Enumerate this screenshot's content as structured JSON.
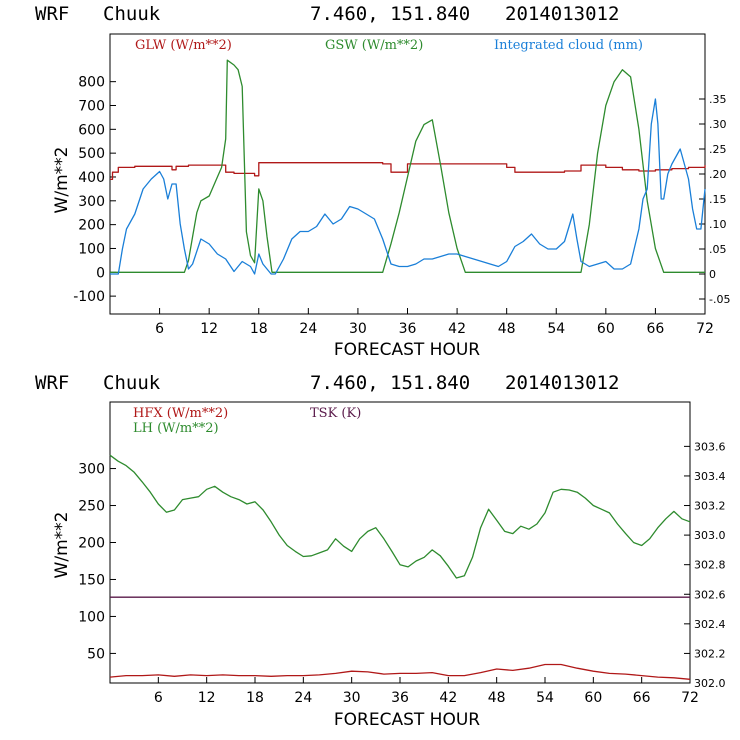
{
  "colors": {
    "red": "#b01818",
    "green": "#2e8b2e",
    "blue": "#1a7fd8",
    "purple": "#5a1a4a",
    "axis": "#000000"
  },
  "chart_data": [
    {
      "type": "line",
      "header": {
        "model": "WRF",
        "station": "Chuuk",
        "coords": "7.460, 151.840",
        "date": "2014013012"
      },
      "xlabel": "FORECAST HOUR",
      "ylabel": "W/m**2",
      "xlim": [
        0,
        72
      ],
      "xticks": [
        6,
        12,
        18,
        24,
        30,
        36,
        42,
        48,
        54,
        60,
        66,
        72
      ],
      "ylim": [
        -175,
        1000
      ],
      "yticks": [
        -100,
        0,
        100,
        200,
        300,
        400,
        500,
        600,
        700,
        800
      ],
      "y2lim": [
        -0.08,
        0.48
      ],
      "y2ticks": [
        -0.05,
        0,
        0.05,
        0.1,
        0.15,
        0.2,
        0.25,
        0.3,
        0.35
      ],
      "y2ticklabels": [
        "-.05",
        "0",
        ".05",
        ".10",
        ".15",
        ".20",
        ".25",
        ".30",
        ".35"
      ],
      "legend": [
        "GLW (W/m**2)",
        "GSW (W/m**2)",
        "Integrated cloud (mm)"
      ],
      "series": [
        {
          "name": "GLW (W/m**2)",
          "color": "red",
          "axis": "left",
          "step": true,
          "x": [
            0,
            0.3,
            1,
            3,
            7,
            7.5,
            8,
            9.5,
            14,
            15,
            17.5,
            18,
            20,
            33,
            34,
            36,
            44,
            48,
            49,
            55,
            57,
            60,
            62,
            64,
            66,
            68,
            70,
            72
          ],
          "y": [
            390,
            420,
            440,
            445,
            445,
            430,
            445,
            450,
            420,
            415,
            405,
            460,
            460,
            455,
            420,
            455,
            455,
            440,
            420,
            425,
            450,
            440,
            430,
            425,
            430,
            435,
            440,
            450
          ]
        },
        {
          "name": "GSW (W/m**2)",
          "color": "green",
          "axis": "left",
          "step": false,
          "x": [
            0,
            9,
            9.5,
            10,
            10.5,
            11,
            12,
            13,
            13.5,
            14,
            14.2,
            15,
            15.5,
            16,
            16.5,
            17,
            17.5,
            18,
            18.5,
            19,
            19.6,
            20,
            33,
            34,
            35,
            36,
            37,
            38,
            39,
            40,
            41,
            42,
            43,
            57,
            58,
            59,
            60,
            61,
            62,
            63,
            64,
            65,
            66,
            67,
            72
          ],
          "y": [
            0,
            0,
            50,
            150,
            250,
            300,
            320,
            400,
            440,
            560,
            890,
            870,
            850,
            780,
            170,
            70,
            40,
            350,
            300,
            150,
            0,
            0,
            0,
            120,
            250,
            400,
            550,
            620,
            640,
            450,
            250,
            100,
            0,
            0,
            200,
            500,
            700,
            800,
            850,
            820,
            600,
            300,
            100,
            0,
            0
          ]
        },
        {
          "name": "Integrated cloud (mm)",
          "color": "blue",
          "axis": "right",
          "step": false,
          "x": [
            0,
            1,
            1.5,
            2,
            3,
            4,
            5,
            6,
            6.5,
            7,
            7.5,
            8,
            8.5,
            9,
            9.5,
            10,
            11,
            12,
            13,
            14,
            15,
            16,
            17,
            17.5,
            18,
            18.5,
            19,
            19.5,
            20,
            21,
            22,
            23,
            24,
            25,
            26,
            27,
            28,
            29,
            30,
            31,
            32,
            33,
            34,
            35,
            36,
            37,
            38,
            39,
            40,
            41,
            42,
            43,
            44,
            45,
            46,
            47,
            48,
            49,
            50,
            51,
            52,
            53,
            54,
            55,
            56,
            56.5,
            57,
            58,
            59,
            60,
            61,
            62,
            63,
            64,
            64.5,
            65,
            65.5,
            66,
            66.3,
            66.7,
            67,
            67.5,
            68,
            69,
            70,
            70.5,
            71,
            71.5,
            72
          ],
          "y": [
            0,
            0,
            0.05,
            0.09,
            0.12,
            0.17,
            0.19,
            0.205,
            0.19,
            0.15,
            0.18,
            0.18,
            0.1,
            0.05,
            0.01,
            0.02,
            0.07,
            0.06,
            0.04,
            0.03,
            0.005,
            0.025,
            0.015,
            0,
            0.04,
            0.02,
            0.01,
            0,
            0,
            0.03,
            0.07,
            0.085,
            0.085,
            0.095,
            0.12,
            0.1,
            0.11,
            0.135,
            0.13,
            0.12,
            0.11,
            0.07,
            0.02,
            0.015,
            0.015,
            0.02,
            0.03,
            0.03,
            0.035,
            0.04,
            0.04,
            0.035,
            0.03,
            0.025,
            0.02,
            0.015,
            0.025,
            0.055,
            0.065,
            0.08,
            0.06,
            0.05,
            0.05,
            0.065,
            0.12,
            0.07,
            0.025,
            0.015,
            0.02,
            0.025,
            0.01,
            0.01,
            0.02,
            0.09,
            0.15,
            0.17,
            0.3,
            0.35,
            0.3,
            0.15,
            0.15,
            0.2,
            0.22,
            0.25,
            0.19,
            0.13,
            0.09,
            0.09,
            0.17
          ]
        }
      ]
    },
    {
      "type": "line",
      "header": {
        "model": "WRF",
        "station": "Chuuk",
        "coords": "7.460, 151.840",
        "date": "2014013012"
      },
      "xlabel": "FORECAST HOUR",
      "ylabel": "W/m**2",
      "xlim": [
        0,
        72
      ],
      "xticks": [
        6,
        12,
        18,
        24,
        30,
        36,
        42,
        48,
        54,
        60,
        66,
        72
      ],
      "ylim": [
        10,
        390
      ],
      "yticks": [
        50,
        100,
        150,
        200,
        250,
        300
      ],
      "y2lim": [
        302.0,
        303.9
      ],
      "y2ticks": [
        302.0,
        302.2,
        302.4,
        302.6,
        302.8,
        303.0,
        303.2,
        303.4,
        303.6
      ],
      "y2ticklabels": [
        "302.0",
        "302.2",
        "302.4",
        "302.6",
        "302.8",
        "303.0",
        "303.2",
        "303.4",
        "303.6"
      ],
      "legend": [
        "HFX (W/m**2)",
        "LH (W/m**2)",
        "TSK (K)"
      ],
      "series": [
        {
          "name": "HFX (W/m**2)",
          "color": "red",
          "axis": "left",
          "step": false,
          "x": [
            0,
            2,
            4,
            6,
            8,
            10,
            12,
            14,
            16,
            18,
            20,
            22,
            24,
            26,
            28,
            30,
            32,
            34,
            36,
            38,
            40,
            42,
            44,
            46,
            48,
            50,
            52,
            54,
            56,
            58,
            60,
            62,
            64,
            66,
            68,
            70,
            72
          ],
          "y": [
            18,
            20,
            20,
            21,
            19,
            21,
            20,
            21,
            20,
            20,
            19,
            20,
            20,
            21,
            23,
            26,
            25,
            22,
            23,
            23,
            24,
            20,
            20,
            24,
            29,
            27,
            30,
            35,
            35,
            30,
            26,
            23,
            22,
            20,
            18,
            17,
            15
          ]
        },
        {
          "name": "LH (W/m**2)",
          "color": "green",
          "axis": "left",
          "step": false,
          "x": [
            0,
            1,
            2,
            3,
            4,
            5,
            6,
            7,
            8,
            9,
            10,
            11,
            12,
            13,
            14,
            15,
            16,
            17,
            18,
            19,
            20,
            21,
            22,
            23,
            24,
            25,
            26,
            27,
            28,
            29,
            30,
            31,
            32,
            33,
            34,
            35,
            36,
            37,
            38,
            39,
            40,
            41,
            42,
            43,
            44,
            45,
            46,
            47,
            48,
            49,
            50,
            51,
            52,
            53,
            54,
            55,
            56,
            57,
            58,
            59,
            60,
            61,
            62,
            63,
            64,
            65,
            66,
            67,
            68,
            69,
            70,
            71,
            72
          ],
          "y": [
            318,
            310,
            304,
            295,
            282,
            268,
            252,
            241,
            244,
            258,
            260,
            262,
            272,
            276,
            268,
            262,
            258,
            252,
            255,
            244,
            228,
            210,
            196,
            188,
            181,
            182,
            186,
            190,
            205,
            195,
            188,
            205,
            215,
            220,
            205,
            188,
            170,
            167,
            175,
            180,
            190,
            182,
            168,
            152,
            155,
            180,
            220,
            245,
            230,
            215,
            212,
            222,
            218,
            225,
            240,
            268,
            272,
            271,
            268,
            260,
            250,
            245,
            240,
            225,
            212,
            200,
            196,
            205,
            220,
            232,
            242,
            232,
            228
          ]
        },
        {
          "name": "TSK (K)",
          "color": "purple",
          "axis": "left",
          "step": false,
          "x": [
            0,
            72
          ],
          "y": [
            126,
            126
          ]
        }
      ]
    }
  ]
}
